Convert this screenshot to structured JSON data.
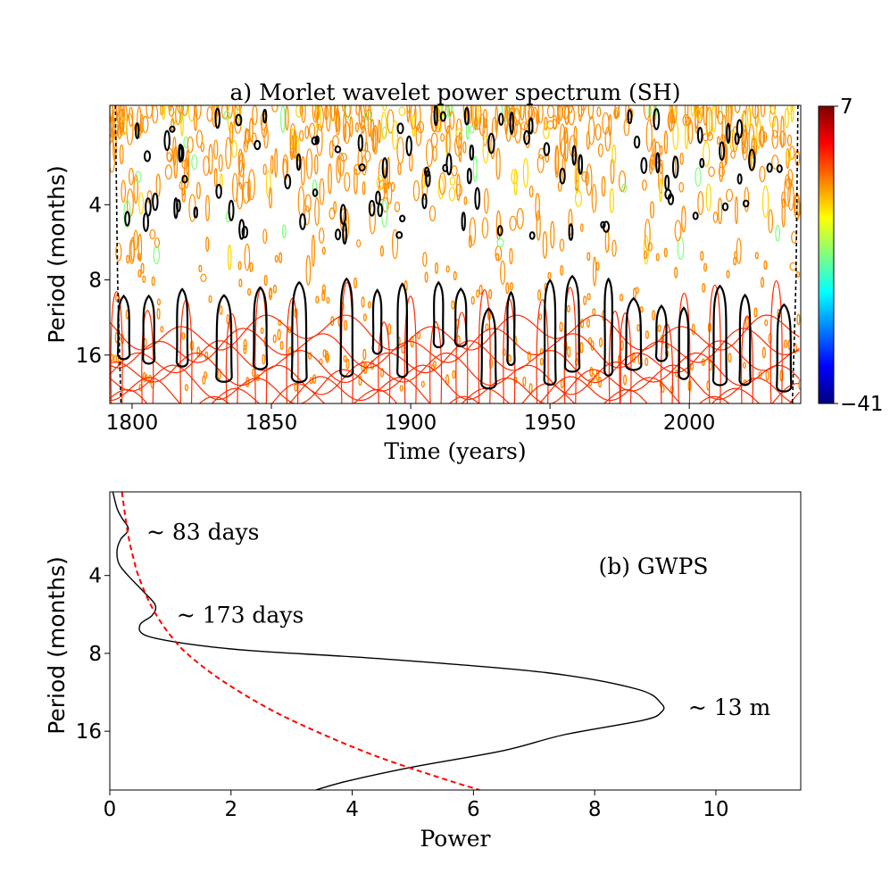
{
  "chart_data": [
    {
      "type": "heatmap",
      "panel": "a",
      "title": "a) Morlet wavelet power spectrum (SH)",
      "xlabel": "Time (years)",
      "ylabel": "Period (months)",
      "xlim": [
        1792,
        2040
      ],
      "ylim_log2_period": [
        1.6,
        25
      ],
      "x_ticks": [
        1800,
        1850,
        1900,
        1950,
        2000
      ],
      "x_tick_labels": [
        "1800",
        "1850",
        "1900",
        "1950",
        "2000"
      ],
      "y_ticks": [
        4,
        8,
        16
      ],
      "y_tick_labels": [
        "4",
        "8",
        "16"
      ],
      "colorbar": {
        "min": -41,
        "max": 7,
        "min_label": "−41",
        "max_label": "7",
        "colormap": [
          "#00007f",
          "#0000ff",
          "#007fff",
          "#00ffff",
          "#7fff7f",
          "#ffff00",
          "#ff7f00",
          "#ff0000",
          "#7f0000"
        ]
      },
      "significance_blobs_13m": [
        1797,
        1806,
        1818,
        1833,
        1846,
        1860,
        1877,
        1888,
        1897,
        1910,
        1918,
        1928,
        1936,
        1950,
        1958,
        1971,
        1980,
        1990,
        1998,
        2011,
        2020,
        2034
      ],
      "cone_of_influence": "dashed black",
      "contour_colors": {
        "significant": "#000000",
        "high_power": "#ff8c00",
        "low_power": "#ff2a00",
        "mid_power": "#ffd700",
        "weak": "#7fff7f"
      }
    },
    {
      "type": "line",
      "panel": "b",
      "label": "(b) GWPS",
      "xlabel": "Power",
      "ylabel": "Period (months)",
      "xlim": [
        0,
        11.4
      ],
      "ylim_period": [
        1.9,
        27
      ],
      "x_ticks": [
        0,
        2,
        4,
        6,
        8,
        10
      ],
      "x_tick_labels": [
        "0",
        "2",
        "4",
        "6",
        "8",
        "10"
      ],
      "y_ticks": [
        4,
        8,
        16
      ],
      "y_tick_labels": [
        "4",
        "8",
        "16"
      ],
      "series": [
        {
          "name": "global wavelet power",
          "color": "#000000",
          "style": "solid",
          "period": [
            1.9,
            2.2,
            2.4,
            2.6,
            2.73,
            2.9,
            3.2,
            3.6,
            4.0,
            4.6,
            5.2,
            5.7,
            6.2,
            6.8,
            7.3,
            7.8,
            8.4,
            9.5,
            11.0,
            12.5,
            13.5,
            14.5,
            16.5,
            19.0,
            22.0,
            25.0,
            27.0
          ],
          "power": [
            0.05,
            0.12,
            0.2,
            0.3,
            0.28,
            0.18,
            0.12,
            0.15,
            0.3,
            0.55,
            0.75,
            0.7,
            0.5,
            0.58,
            1.2,
            2.3,
            4.5,
            7.2,
            8.7,
            9.1,
            9.1,
            8.8,
            7.5,
            6.5,
            5.0,
            3.9,
            3.4
          ]
        },
        {
          "name": "significance level",
          "color": "#ff0000",
          "style": "dashed",
          "period": [
            1.9,
            2.5,
            3.0,
            3.5,
            4.0,
            5.0,
            6.0,
            7.0,
            8.0,
            10.0,
            13.0,
            16.0,
            20.0,
            24.0,
            27.0
          ],
          "power": [
            0.2,
            0.27,
            0.33,
            0.4,
            0.47,
            0.64,
            0.83,
            1.04,
            1.27,
            1.8,
            2.6,
            3.4,
            4.4,
            5.4,
            6.1
          ]
        }
      ],
      "annotations": [
        {
          "text": "~ 83 days",
          "period": 2.73,
          "power": 0.28
        },
        {
          "text": "~ 173 days",
          "period": 5.7,
          "power": 0.72
        },
        {
          "text": "~ 13 m",
          "period": 13.0,
          "power": 9.1
        }
      ]
    }
  ]
}
